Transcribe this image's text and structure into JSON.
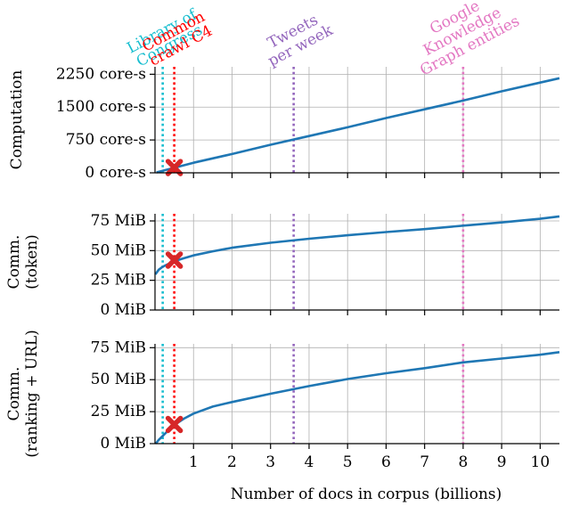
{
  "chart_data": [
    {
      "type": "line",
      "ylabel": [
        "Computation"
      ],
      "yticks": [
        0,
        750,
        1500,
        2250
      ],
      "ytick_labels": [
        "0 core-s",
        "750 core-s",
        "1500 core-s",
        "2250 core-s"
      ],
      "ylim": [
        0,
        2420
      ],
      "xlim": [
        0,
        10.5
      ],
      "grid": true,
      "series": [
        {
          "x": [
            0.04,
            1,
            2,
            3,
            4,
            5,
            6,
            7,
            8,
            9,
            10,
            10.5
          ],
          "y": [
            10,
            230,
            430,
            640,
            840,
            1040,
            1250,
            1450,
            1650,
            1860,
            2060,
            2160
          ]
        }
      ],
      "marker": {
        "x": 0.5,
        "y": 120
      }
    },
    {
      "type": "line",
      "ylabel": [
        "Comm.",
        "(token)"
      ],
      "yticks": [
        0,
        25,
        50,
        75
      ],
      "ytick_labels": [
        "0 MiB",
        "25 MiB",
        "50 MiB",
        "75 MiB"
      ],
      "ylim": [
        0,
        81
      ],
      "xlim": [
        0,
        10.5
      ],
      "grid": true,
      "series": [
        {
          "x": [
            0.01,
            0.1,
            0.2,
            0.3,
            0.5,
            0.75,
            1,
            1.5,
            2,
            3,
            4,
            5,
            6,
            7,
            8,
            9,
            10,
            10.5
          ],
          "y": [
            30,
            34,
            36.4,
            38,
            41,
            43.6,
            46,
            49.4,
            52.4,
            56.6,
            60,
            62.9,
            65.6,
            68.1,
            71,
            73.7,
            76.8,
            78.8
          ]
        }
      ],
      "marker": {
        "x": 0.5,
        "y": 42
      }
    },
    {
      "type": "line",
      "ylabel": [
        "Comm.",
        "(ranking + URL)"
      ],
      "yticks": [
        0,
        25,
        50,
        75
      ],
      "ytick_labels": [
        "0 MiB",
        "25 MiB",
        "50 MiB",
        "75 MiB"
      ],
      "ylim": [
        0,
        78
      ],
      "xlim": [
        0,
        10.5
      ],
      "xticks": [
        1,
        2,
        3,
        4,
        5,
        6,
        7,
        8,
        9,
        10
      ],
      "xtick_labels": [
        "1",
        "2",
        "3",
        "4",
        "5",
        "6",
        "7",
        "8",
        "9",
        "10"
      ],
      "xlabel": "Number of docs in corpus (billions)",
      "grid": true,
      "series": [
        {
          "x": [
            0.02,
            0.1,
            0.2,
            0.3,
            0.5,
            0.75,
            1,
            1.5,
            2,
            3,
            4,
            5,
            6,
            7,
            8,
            9,
            10,
            10.5
          ],
          "y": [
            0,
            3,
            6,
            9,
            14.5,
            19.5,
            23.5,
            29,
            32.5,
            39,
            45,
            50.5,
            55,
            59,
            63.5,
            66.5,
            69.5,
            71.5
          ]
        }
      ],
      "marker": {
        "x": 0.5,
        "y": 15
      }
    }
  ],
  "vlines": [
    {
      "x": 0.2,
      "color": "#17becf",
      "label": [
        "Library of",
        "Congress"
      ]
    },
    {
      "x": 0.5,
      "color": "#ff0000",
      "label": [
        "Common",
        "crawl C4"
      ]
    },
    {
      "x": 3.6,
      "color": "#9467bd",
      "label": [
        "Tweets",
        "per week"
      ]
    },
    {
      "x": 8.0,
      "color": "#e377c2",
      "label": [
        "Google",
        "Knowledge",
        "Graph entities"
      ]
    }
  ],
  "colors": {
    "line": "#1f77b4",
    "marker": "#d62728",
    "grid": "#b0b0b0"
  }
}
